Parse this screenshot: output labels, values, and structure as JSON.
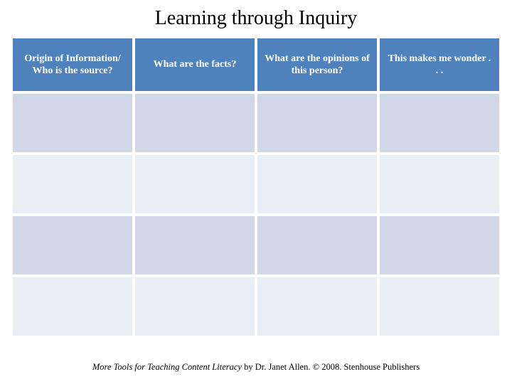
{
  "title": "Learning through Inquiry",
  "table": {
    "header_bg": "#4f81bd",
    "header_text_color": "#ffffff",
    "row_colors": [
      "#d0d8e8",
      "#e9edf4",
      "#d0d8e8",
      "#e9edf4"
    ],
    "columns": [
      "Origin of Information/ Who is the source?",
      "What are the facts?",
      "What are the opinions of this person?",
      "This makes me wonder . . ."
    ],
    "num_rows": 4,
    "num_cols": 4,
    "col_font_size": 14
  },
  "footnote": {
    "italic_part": "More Tools for Teaching Content Literacy",
    "rest": " by Dr. Janet Allen. © 2008. Stenhouse Publishers"
  }
}
